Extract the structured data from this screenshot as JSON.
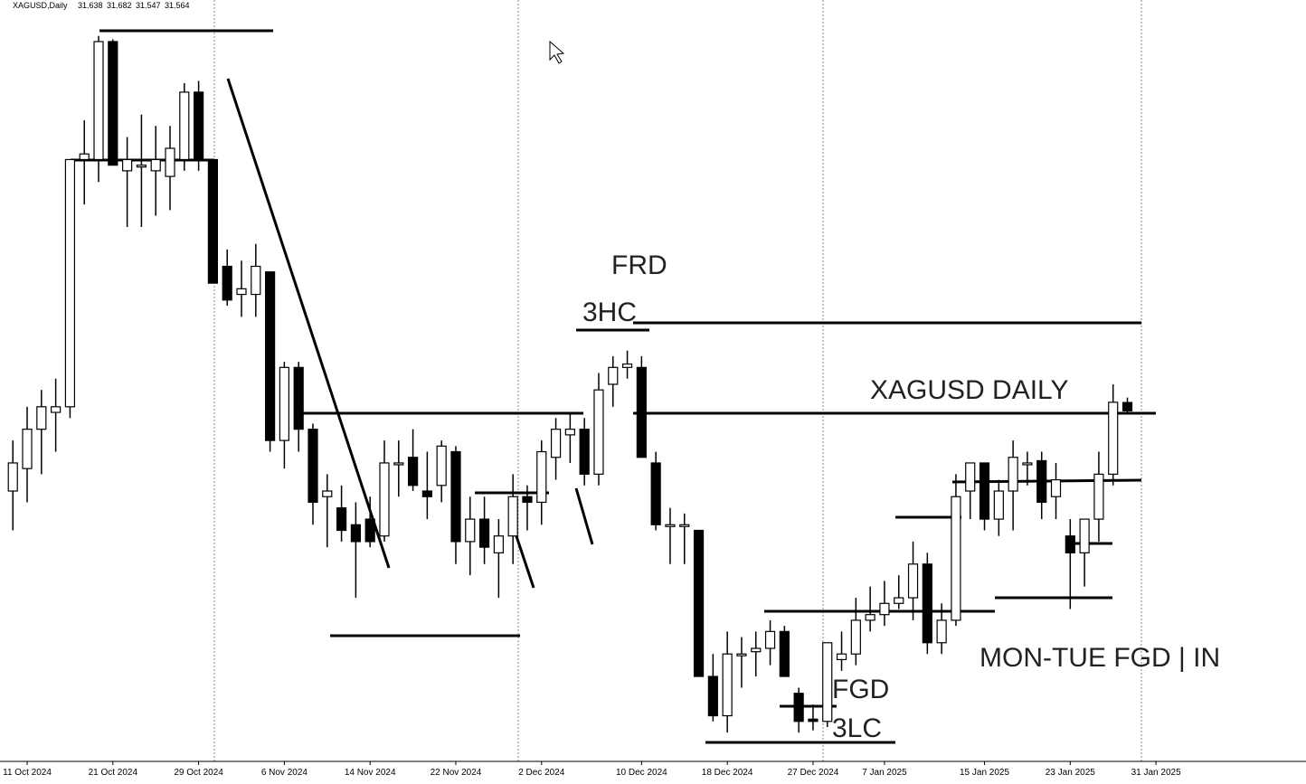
{
  "chart_data": {
    "type": "candlestick",
    "title": "XAGUSD,Daily",
    "candles": [
      [
        30.85,
        31.3,
        30.5,
        31.1
      ],
      [
        31.05,
        31.6,
        30.75,
        31.4
      ],
      [
        31.4,
        31.75,
        31.0,
        31.6
      ],
      [
        31.55,
        31.85,
        31.2,
        31.6
      ],
      [
        31.6,
        33.8,
        31.5,
        33.8
      ],
      [
        33.8,
        34.15,
        33.4,
        33.85
      ],
      [
        33.8,
        34.9,
        33.6,
        34.85
      ],
      [
        34.85,
        34.87,
        33.75,
        33.75
      ],
      [
        33.7,
        34.0,
        33.2,
        33.8
      ],
      [
        33.75,
        34.2,
        33.2,
        33.75
      ],
      [
        33.7,
        34.1,
        33.3,
        33.8
      ],
      [
        33.65,
        34.1,
        33.35,
        33.9
      ],
      [
        33.8,
        34.48,
        33.7,
        34.4
      ],
      [
        34.4,
        34.5,
        33.7,
        33.8
      ],
      [
        33.8,
        33.8,
        32.7,
        32.7
      ],
      [
        32.85,
        33.0,
        32.5,
        32.55
      ],
      [
        32.6,
        32.9,
        32.4,
        32.65
      ],
      [
        32.6,
        33.05,
        32.4,
        32.85
      ],
      [
        32.8,
        32.8,
        31.2,
        31.3
      ],
      [
        31.3,
        32.0,
        31.05,
        31.95
      ],
      [
        31.95,
        32.0,
        31.2,
        31.4
      ],
      [
        31.4,
        31.45,
        30.55,
        30.75
      ],
      [
        30.8,
        31.0,
        30.35,
        30.85
      ],
      [
        30.7,
        30.9,
        30.4,
        30.5
      ],
      [
        30.55,
        30.75,
        29.9,
        30.4
      ],
      [
        30.6,
        30.8,
        30.35,
        30.4
      ],
      [
        30.45,
        31.3,
        30.4,
        31.1
      ],
      [
        31.1,
        31.3,
        30.8,
        31.1
      ],
      [
        31.15,
        31.4,
        30.85,
        30.9
      ],
      [
        30.85,
        31.2,
        30.6,
        30.8
      ],
      [
        30.9,
        31.3,
        30.75,
        31.25
      ],
      [
        31.2,
        31.25,
        30.2,
        30.4
      ],
      [
        30.4,
        30.8,
        30.1,
        30.6
      ],
      [
        30.6,
        30.8,
        30.2,
        30.35
      ],
      [
        30.3,
        30.6,
        29.9,
        30.45
      ],
      [
        30.45,
        31.0,
        30.2,
        30.8
      ],
      [
        30.8,
        30.9,
        30.5,
        30.75
      ],
      [
        30.75,
        31.3,
        30.55,
        31.2
      ],
      [
        31.15,
        31.5,
        30.95,
        31.4
      ],
      [
        31.35,
        31.55,
        31.1,
        31.4
      ],
      [
        31.4,
        31.5,
        30.9,
        31.0
      ],
      [
        31.0,
        31.9,
        30.9,
        31.75
      ],
      [
        31.8,
        32.05,
        31.6,
        31.95
      ],
      [
        31.95,
        32.1,
        31.85,
        31.98
      ],
      [
        31.95,
        32.05,
        31.2,
        31.15
      ],
      [
        31.1,
        31.2,
        30.5,
        30.55
      ],
      [
        30.55,
        30.7,
        30.2,
        30.55
      ],
      [
        30.55,
        30.65,
        30.2,
        30.55
      ],
      [
        30.5,
        30.5,
        29.2,
        29.2
      ],
      [
        29.2,
        29.4,
        28.8,
        28.85
      ],
      [
        28.85,
        29.6,
        28.7,
        29.4
      ],
      [
        29.4,
        29.55,
        29.1,
        29.4
      ],
      [
        29.42,
        29.6,
        29.2,
        29.45
      ],
      [
        29.45,
        29.7,
        29.3,
        29.6
      ],
      [
        29.6,
        29.65,
        29.2,
        29.2
      ],
      [
        29.05,
        29.1,
        28.7,
        28.8
      ],
      [
        28.82,
        28.95,
        28.72,
        28.8
      ],
      [
        28.8,
        29.5,
        28.75,
        29.5
      ],
      [
        29.35,
        29.6,
        29.25,
        29.4
      ],
      [
        29.4,
        29.9,
        29.3,
        29.7
      ],
      [
        29.7,
        30.0,
        29.6,
        29.75
      ],
      [
        29.75,
        30.05,
        29.65,
        29.85
      ],
      [
        29.85,
        30.1,
        29.8,
        29.9
      ],
      [
        29.9,
        30.4,
        29.7,
        30.2
      ],
      [
        30.2,
        30.3,
        29.4,
        29.5
      ],
      [
        29.5,
        29.85,
        29.4,
        29.7
      ],
      [
        29.7,
        31.0,
        29.65,
        30.8
      ],
      [
        30.85,
        31.1,
        30.6,
        31.1
      ],
      [
        31.1,
        31.1,
        30.5,
        30.6
      ],
      [
        30.6,
        30.95,
        30.45,
        30.85
      ],
      [
        30.85,
        31.3,
        30.5,
        31.15
      ],
      [
        31.1,
        31.2,
        30.9,
        31.1
      ],
      [
        31.12,
        31.2,
        30.6,
        30.75
      ],
      [
        30.8,
        31.1,
        30.6,
        30.95
      ],
      [
        30.45,
        30.6,
        29.8,
        30.3
      ],
      [
        30.3,
        30.6,
        30.0,
        30.6
      ],
      [
        30.6,
        31.2,
        30.4,
        31.0
      ],
      [
        31.0,
        31.8,
        30.9,
        31.64
      ],
      [
        31.638,
        31.682,
        31.547,
        31.564
      ]
    ],
    "xlim": [
      -0.9,
      90.5
    ],
    "ylim": [
      28.46,
      35.22
    ],
    "xticks": [
      {
        "value": 1,
        "label": "11 Oct 2024"
      },
      {
        "value": 7,
        "label": "21 Oct 2024"
      },
      {
        "value": 13,
        "label": "29 Oct 2024"
      },
      {
        "value": 19,
        "label": "6 Nov 2024"
      },
      {
        "value": 25,
        "label": "14 Nov 2024"
      },
      {
        "value": 31,
        "label": "22 Nov 2024"
      },
      {
        "value": 37,
        "label": "2 Dec 2024"
      },
      {
        "value": 44,
        "label": "10 Dec 2024"
      },
      {
        "value": 50,
        "label": "18 Dec 2024"
      },
      {
        "value": 56,
        "label": "27 Dec 2024"
      },
      {
        "value": 61,
        "label": "7 Jan 2025"
      },
      {
        "value": 68,
        "label": "15 Jan 2025"
      },
      {
        "value": 74,
        "label": "23 Jan 2025"
      },
      {
        "value": 80,
        "label": "31 Jan 2025"
      }
    ],
    "up_color": "#ffffff",
    "down_color": "#000000",
    "annotations": [
      "FRD",
      "3HC",
      "XAGUSD DAILY",
      "FGD",
      "3LC",
      "MON-TUE FGD | IN"
    ]
  }
}
